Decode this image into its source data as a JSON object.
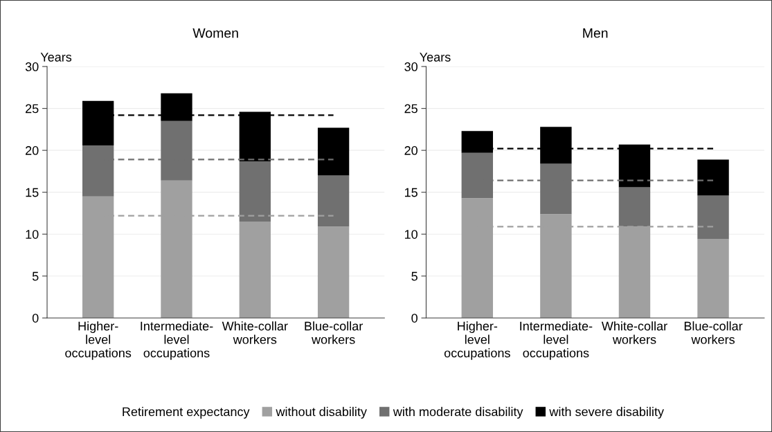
{
  "chart_data": [
    {
      "type": "bar",
      "title": "Women",
      "ylabel": "Years",
      "stacked": true,
      "categories": [
        "Higher-level occupations",
        "Intermediate-level occupations",
        "White-collar workers",
        "Blue-collar workers"
      ],
      "series": [
        {
          "name": "without disability",
          "color": "#a0a0a0",
          "values": [
            14.5,
            16.4,
            11.5,
            10.9
          ]
        },
        {
          "name": "with moderate disability",
          "color": "#707070",
          "values": [
            6.1,
            7.1,
            7.2,
            6.1
          ]
        },
        {
          "name": "with severe disability",
          "color": "#000000",
          "values": [
            5.3,
            3.3,
            5.9,
            5.7
          ]
        }
      ],
      "ref_lines": [
        {
          "axis": "y",
          "value": 24.2,
          "color": "#000000",
          "line_style": "dashed"
        },
        {
          "axis": "y",
          "value": 18.9,
          "color": "#707070",
          "line_style": "dashed"
        },
        {
          "axis": "y",
          "value": 12.2,
          "color": "#a0a0a0",
          "line_style": "dashed"
        }
      ],
      "ylim": [
        0,
        30
      ],
      "yticks": [
        0,
        5,
        10,
        15,
        20,
        25,
        30
      ],
      "grid": "y",
      "legend": "bottom",
      "legend_title": "Retirement expectancy"
    },
    {
      "type": "bar",
      "title": "Men",
      "ylabel": "Years",
      "stacked": true,
      "categories": [
        "Higher-level occupations",
        "Intermediate-level occupations",
        "White-collar workers",
        "Blue-collar workers"
      ],
      "series": [
        {
          "name": "without disability",
          "color": "#a0a0a0",
          "values": [
            14.3,
            12.4,
            10.9,
            9.4
          ]
        },
        {
          "name": "with moderate disability",
          "color": "#707070",
          "values": [
            5.4,
            6.0,
            4.7,
            5.2
          ]
        },
        {
          "name": "with severe disability",
          "color": "#000000",
          "values": [
            2.6,
            4.4,
            5.1,
            4.3
          ]
        }
      ],
      "ref_lines": [
        {
          "axis": "y",
          "value": 20.2,
          "color": "#000000",
          "line_style": "dashed"
        },
        {
          "axis": "y",
          "value": 16.4,
          "color": "#707070",
          "line_style": "dashed"
        },
        {
          "axis": "y",
          "value": 10.9,
          "color": "#a0a0a0",
          "line_style": "dashed"
        }
      ],
      "ylim": [
        0,
        30
      ],
      "yticks": [
        0,
        5,
        10,
        15,
        20,
        25,
        30
      ],
      "grid": "y"
    }
  ]
}
